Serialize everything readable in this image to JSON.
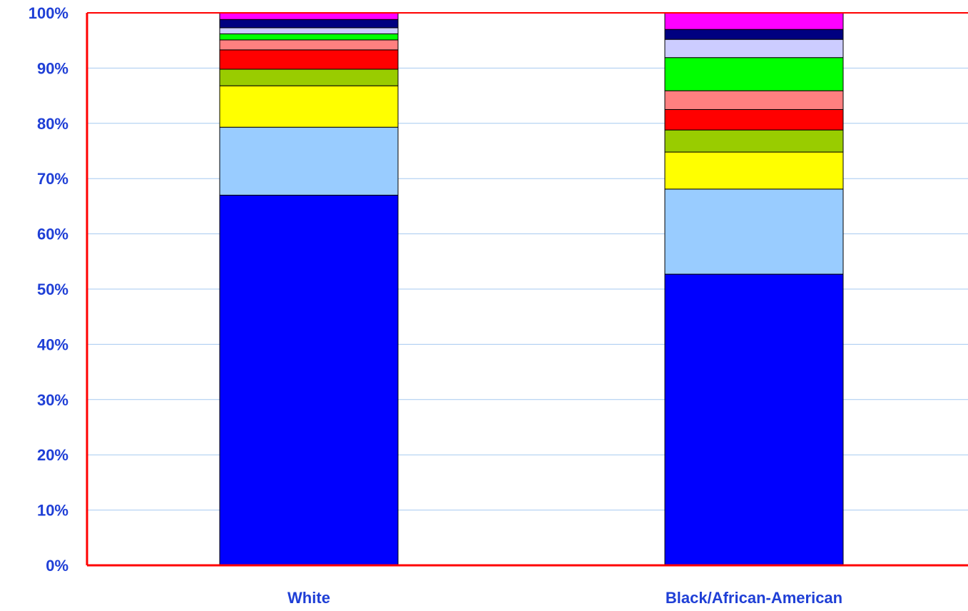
{
  "chart_data": {
    "type": "bar",
    "stacked": true,
    "normalized": true,
    "categories": [
      "White",
      "Black/African-American"
    ],
    "yticks": [
      "0%",
      "10%",
      "20%",
      "30%",
      "40%",
      "50%",
      "60%",
      "70%",
      "80%",
      "90%",
      "100%"
    ],
    "ylim": [
      0,
      100
    ],
    "grid": true,
    "legend": "none",
    "series": [
      {
        "color": "#0000ff",
        "values": [
          67.0,
          52.7
        ]
      },
      {
        "color": "#99ccff",
        "values": [
          12.3,
          15.4
        ]
      },
      {
        "color": "#ffff00",
        "values": [
          7.5,
          6.7
        ]
      },
      {
        "color": "#99cc00",
        "values": [
          3.0,
          4.0
        ]
      },
      {
        "color": "#ff0000",
        "values": [
          3.5,
          3.7
        ]
      },
      {
        "color": "#ff8080",
        "values": [
          1.8,
          3.4
        ]
      },
      {
        "color": "#00ff00",
        "values": [
          1.1,
          6.0
        ]
      },
      {
        "color": "#ccccff",
        "values": [
          1.1,
          3.3
        ]
      },
      {
        "color": "#000080",
        "values": [
          1.5,
          1.8
        ]
      },
      {
        "color": "#ff00ff",
        "values": [
          1.2,
          3.0
        ]
      }
    ],
    "plot_border_color": "#ff0000",
    "gridline_color": "#a6caf0",
    "text_color": "#1f3fd6"
  }
}
